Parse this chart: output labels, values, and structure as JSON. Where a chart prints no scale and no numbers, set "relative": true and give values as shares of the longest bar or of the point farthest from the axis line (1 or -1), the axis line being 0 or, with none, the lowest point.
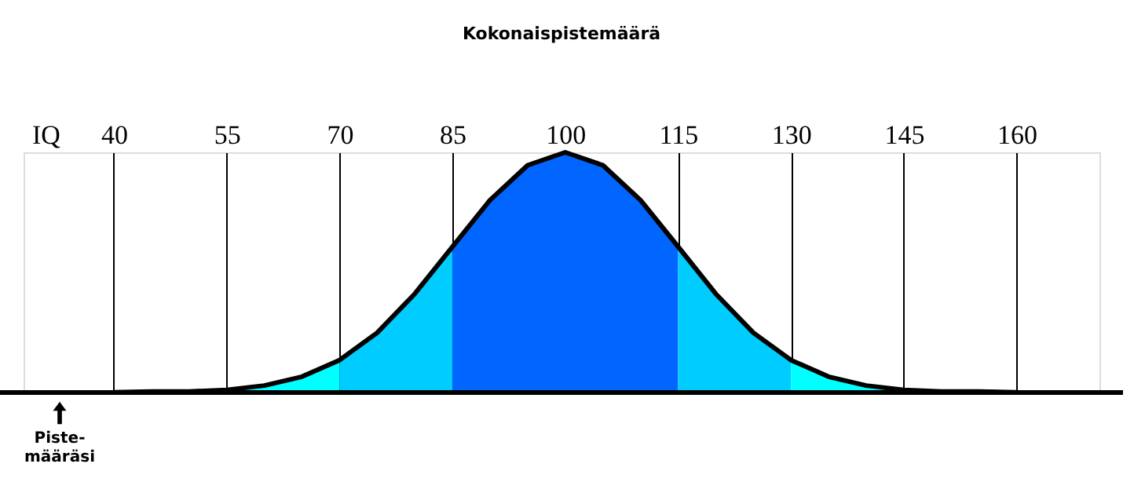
{
  "chart_data": {
    "type": "area",
    "title": "Kokonaispistemäärä",
    "xlabel": "IQ",
    "relative": true,
    "xlim": [
      28,
      171
    ],
    "xticks": [
      40,
      55,
      70,
      85,
      100,
      115,
      130,
      145,
      160
    ],
    "grid": "x",
    "series": [
      {
        "color": "#00ffff",
        "x": [
          55,
          60,
          65,
          70
        ],
        "values": [
          0.011,
          0.029,
          0.066,
          0.135
        ]
      },
      {
        "color": "#00ccff",
        "x": [
          70,
          75,
          80,
          85
        ],
        "values": [
          0.135,
          0.249,
          0.411,
          0.607
        ]
      },
      {
        "color": "#0066ff",
        "x": [
          85,
          90,
          95,
          100,
          105,
          110,
          115
        ],
        "values": [
          0.607,
          0.801,
          0.946,
          1,
          0.946,
          0.801,
          0.607
        ]
      },
      {
        "color": "#00ccff",
        "x": [
          115,
          120,
          125,
          130
        ],
        "values": [
          0.607,
          0.411,
          0.249,
          0.135
        ]
      },
      {
        "color": "#00ffff",
        "x": [
          130,
          135,
          140,
          145
        ],
        "values": [
          0.135,
          0.066,
          0.029,
          0.011
        ]
      },
      {
        "type": "line",
        "color": "#000000",
        "x": [
          40,
          45,
          50,
          55,
          60,
          65,
          70,
          75,
          80,
          85,
          90,
          95,
          100,
          105,
          110,
          115,
          120,
          125,
          130,
          135,
          140,
          145,
          150,
          155,
          160
        ],
        "values": [
          0.001,
          0.004,
          0.004,
          0.011,
          0.029,
          0.066,
          0.135,
          0.249,
          0.411,
          0.607,
          0.801,
          0.946,
          1,
          0.946,
          0.801,
          0.607,
          0.411,
          0.249,
          0.135,
          0.066,
          0.029,
          0.011,
          0.004,
          0.004,
          0.001
        ]
      }
    ],
    "annotations": [
      "Piste-määräsi"
    ]
  }
}
